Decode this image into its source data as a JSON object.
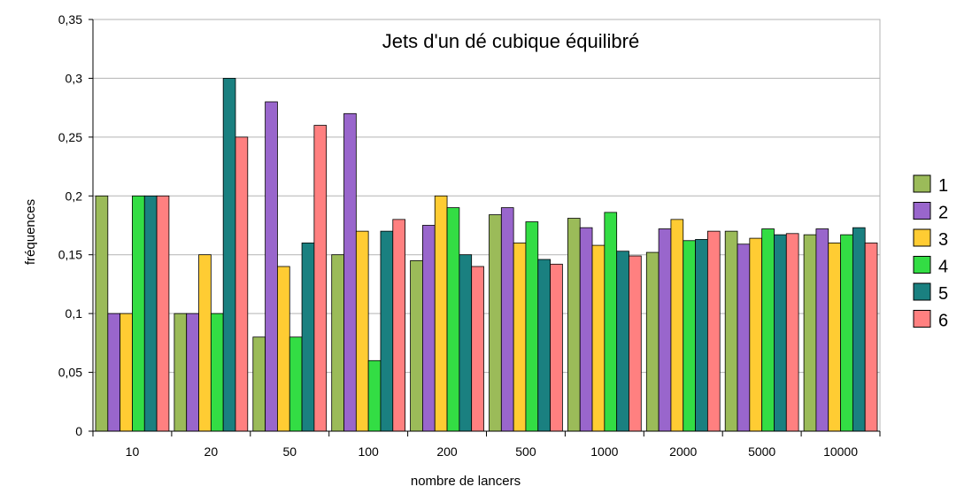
{
  "chart_data": {
    "type": "bar",
    "title": "Jets d'un dé cubique équilibré",
    "xlabel": "nombre de lancers",
    "ylabel": "fréquences",
    "ylim": [
      0,
      0.35
    ],
    "y_ticks": [
      "0",
      "0,05",
      "0,1",
      "0,15",
      "0,2",
      "0,25",
      "0,3",
      "0,35"
    ],
    "y_tick_values": [
      0,
      0.05,
      0.1,
      0.15,
      0.2,
      0.25,
      0.3,
      0.35
    ],
    "categories": [
      "10",
      "20",
      "50",
      "100",
      "200",
      "500",
      "1000",
      "2000",
      "5000",
      "10000"
    ],
    "grid": "horizontal",
    "legend_position": "right",
    "series": [
      {
        "name": "1",
        "color": "#9bbb59",
        "values": [
          0.2,
          0.1,
          0.08,
          0.15,
          0.145,
          0.184,
          0.181,
          0.152,
          0.17,
          0.167
        ]
      },
      {
        "name": "2",
        "color": "#9966cc",
        "values": [
          0.1,
          0.1,
          0.28,
          0.27,
          0.175,
          0.19,
          0.173,
          0.172,
          0.159,
          0.172
        ]
      },
      {
        "name": "3",
        "color": "#ffcc33",
        "values": [
          0.1,
          0.15,
          0.14,
          0.17,
          0.2,
          0.16,
          0.158,
          0.18,
          0.164,
          0.16
        ]
      },
      {
        "name": "4",
        "color": "#33dd44",
        "values": [
          0.2,
          0.1,
          0.08,
          0.06,
          0.19,
          0.178,
          0.186,
          0.162,
          0.172,
          0.167
        ]
      },
      {
        "name": "5",
        "color": "#1a8080",
        "values": [
          0.2,
          0.3,
          0.16,
          0.17,
          0.15,
          0.146,
          0.153,
          0.163,
          0.167,
          0.173
        ]
      },
      {
        "name": "6",
        "color": "#ff8080",
        "values": [
          0.2,
          0.25,
          0.26,
          0.18,
          0.14,
          0.142,
          0.149,
          0.17,
          0.168,
          0.16
        ]
      }
    ]
  }
}
